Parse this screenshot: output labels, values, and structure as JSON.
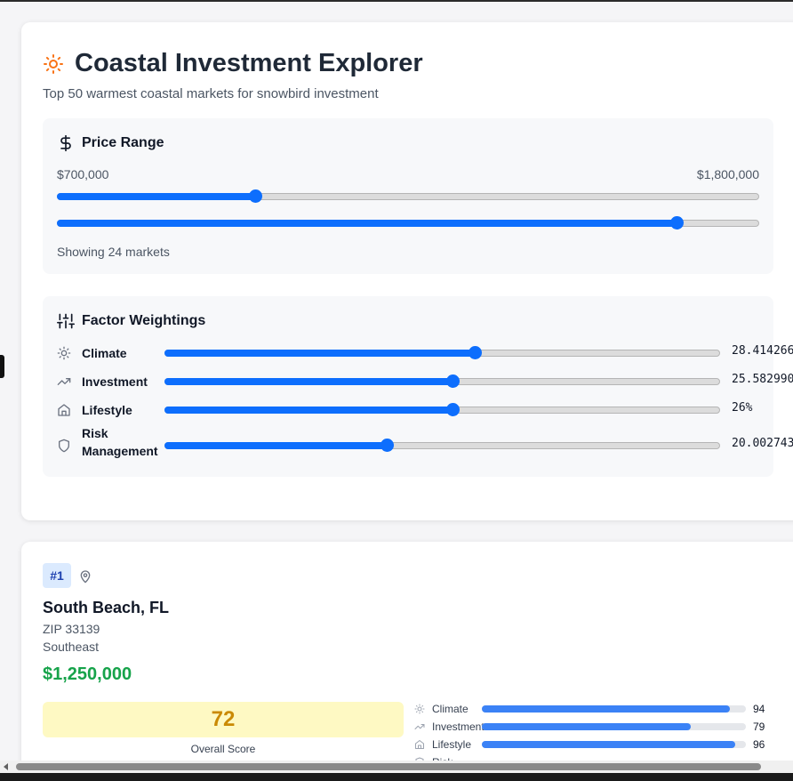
{
  "header": {
    "title": "Coastal Investment Explorer",
    "subtitle": "Top 50 warmest coastal markets for snowbird investment",
    "icon": "sun-icon",
    "accent": "#f97316"
  },
  "price_range": {
    "heading": "Price Range",
    "icon": "dollar-icon",
    "min_label": "$700,000",
    "max_label": "$1,800,000",
    "min_slider_fraction": 0.282,
    "max_slider_fraction": 0.882,
    "showing_text": "Showing 24 markets"
  },
  "weightings": {
    "heading": "Factor Weightings",
    "icon": "sliders-icon",
    "factors": [
      {
        "label": "Climate",
        "value": "28.414266",
        "fraction": 0.558,
        "icon": "sun-icon"
      },
      {
        "label": "Investment",
        "value": "25.582990",
        "fraction": 0.519,
        "icon": "trending-up-icon"
      },
      {
        "label": "Lifestyle",
        "value": "26%",
        "fraction": 0.519,
        "icon": "home-icon"
      },
      {
        "label": "Risk Management",
        "value": "20.002743",
        "fraction": 0.4,
        "icon": "shield-icon"
      }
    ]
  },
  "market": {
    "rank": "#1",
    "city": "South Beach, FL",
    "zip": "ZIP 33139",
    "region": "Southeast",
    "price": "$1,250,000",
    "score": "72",
    "score_label": "Overall Score",
    "metrics": [
      {
        "label": "Climate",
        "value": "94",
        "icon": "sun-icon"
      },
      {
        "label": "Investment",
        "value": "79",
        "icon": "trending-up-icon"
      },
      {
        "label": "Lifestyle",
        "value": "96",
        "icon": "home-icon"
      },
      {
        "label": "Risk",
        "value": "",
        "icon": "shield-icon"
      }
    ]
  },
  "colors": {
    "slider": "#0d6efd",
    "price": "#16a34a",
    "score_bg": "#fef9c3",
    "score_text": "#ca8a04",
    "metric_bar": "#3b82f6"
  }
}
